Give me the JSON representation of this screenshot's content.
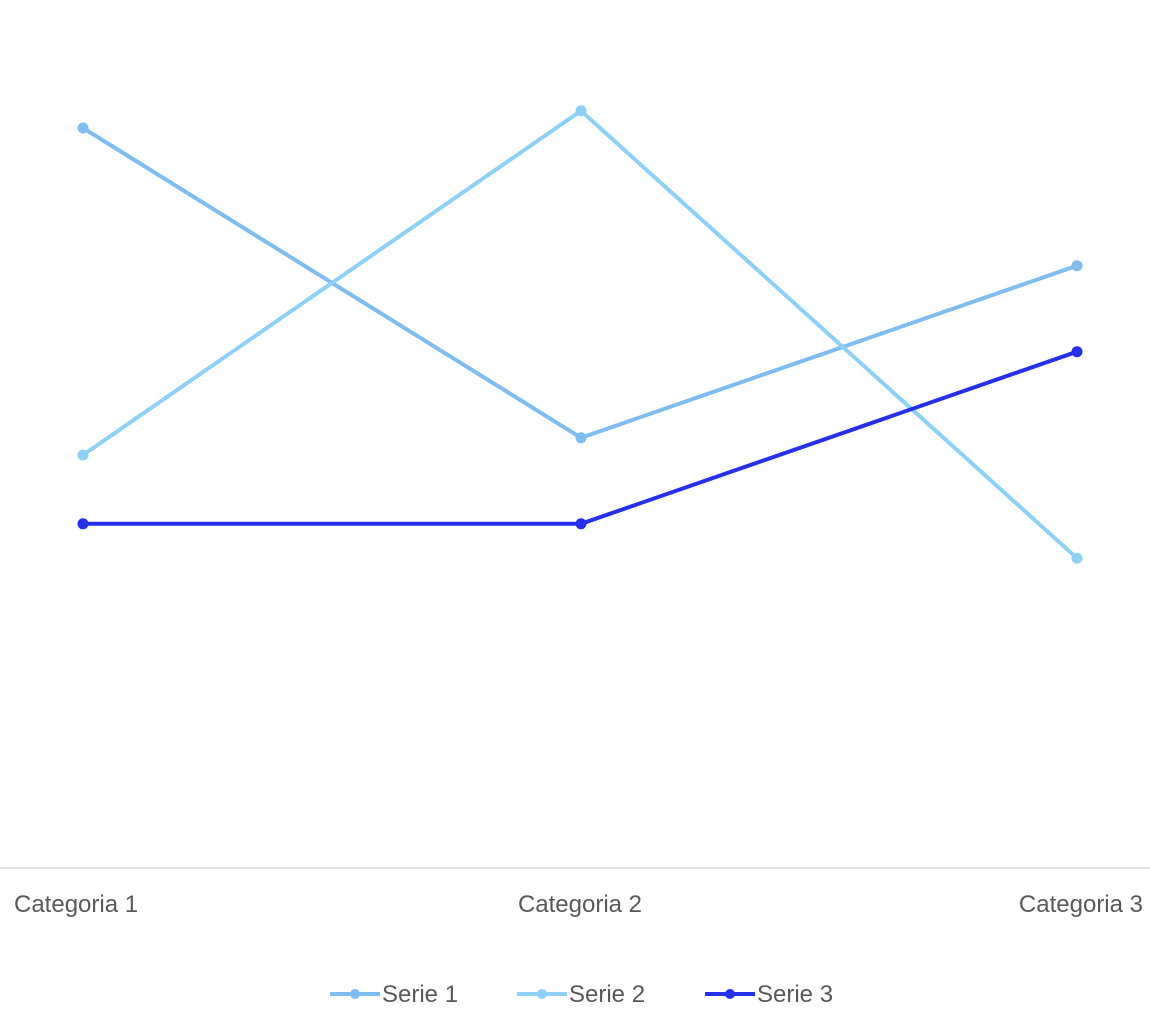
{
  "chart_data": {
    "type": "line",
    "title": "",
    "xlabel": "",
    "ylabel": "",
    "categories": [
      "Categoria 1",
      "Categoria 2",
      "Categoria 3"
    ],
    "ylim": [
      0,
      5
    ],
    "grid": false,
    "legend": "bottom",
    "series": [
      {
        "name": "Serie 1",
        "values": [
          4.3,
          2.5,
          3.5
        ],
        "color": "#7fbcf0"
      },
      {
        "name": "Serie 2",
        "values": [
          2.4,
          4.4,
          1.8
        ],
        "color": "#8fd0f7"
      },
      {
        "name": "Serie 3",
        "values": [
          2.0,
          2.0,
          3.0
        ],
        "color": "#2630e8"
      }
    ]
  }
}
